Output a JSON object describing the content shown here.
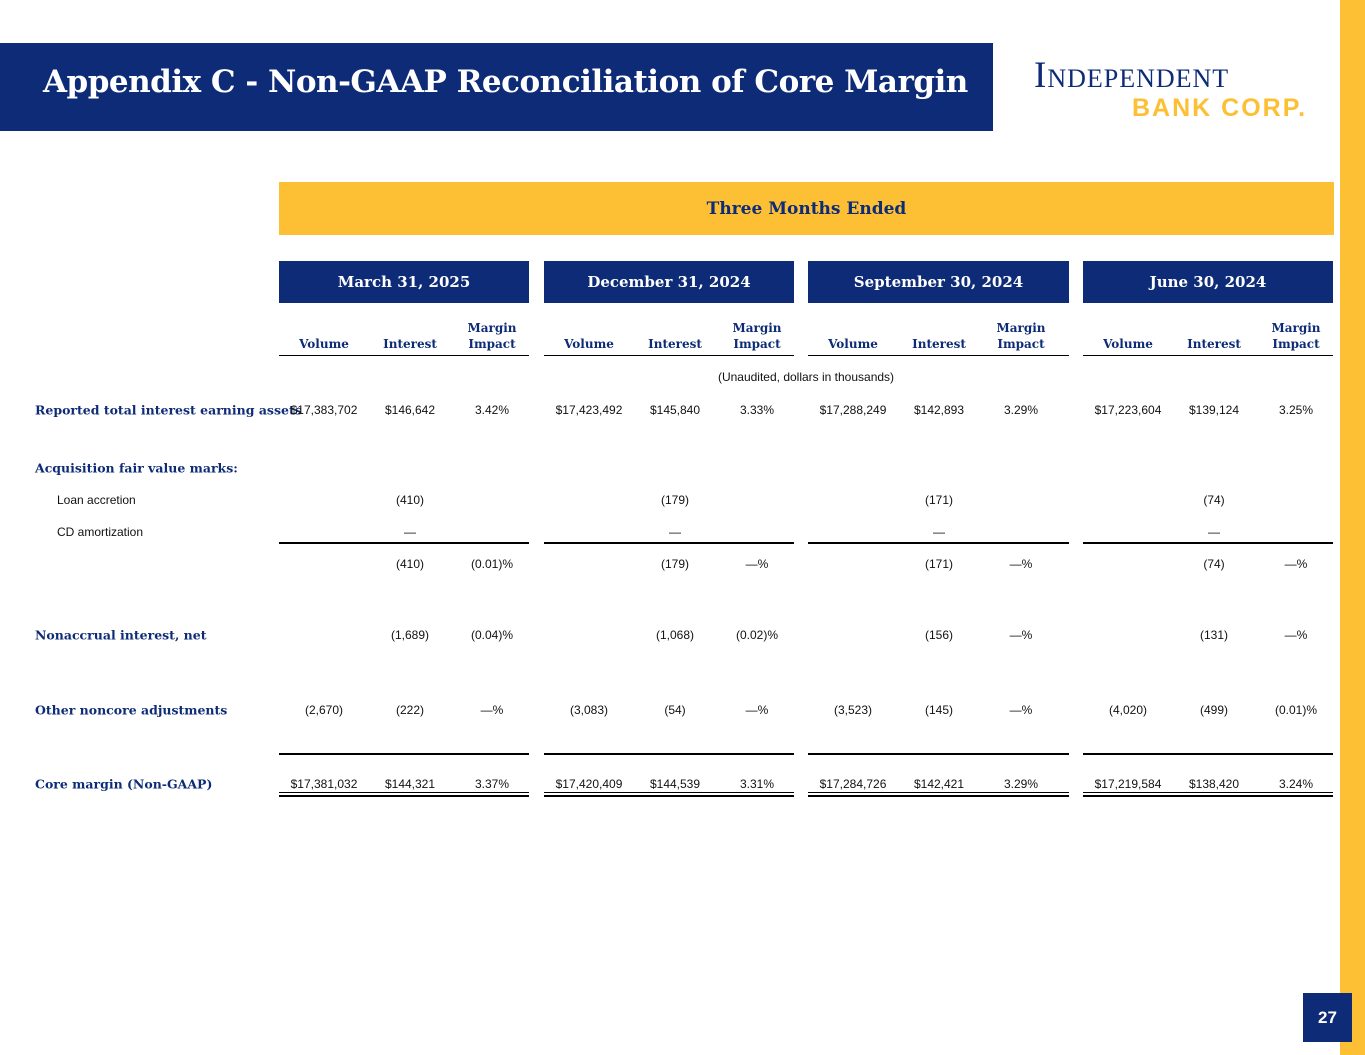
{
  "title": "Appendix C - Non-GAAP Reconciliation of Core Margin",
  "logo": {
    "line1": "Independent",
    "line2": "BANK CORP."
  },
  "page_number": "27",
  "table": {
    "super_header": "Three Months Ended",
    "note": "(Unaudited, dollars in thousands)",
    "column_headers": {
      "volume": "Volume",
      "interest": "Interest",
      "margin": "Margin Impact"
    },
    "periods": [
      "March 31, 2025",
      "December 31, 2024",
      "September 30, 2024",
      "June 30, 2024"
    ],
    "rows": [
      {
        "label": "Reported total interest earning assets",
        "bold": true,
        "values": [
          [
            "$17,383,702",
            "$146,642",
            "3.42%"
          ],
          [
            "$17,423,492",
            "$145,840",
            "3.33%"
          ],
          [
            "$17,288,249",
            "$142,893",
            "3.29%"
          ],
          [
            "$17,223,604",
            "$139,124",
            "3.25%"
          ]
        ]
      },
      {
        "label": "Acquisition fair value marks:",
        "bold": true,
        "values": []
      },
      {
        "label": "Loan accretion",
        "bold": false,
        "indent": true,
        "values": [
          [
            "",
            "(410)",
            ""
          ],
          [
            "",
            "(179)",
            ""
          ],
          [
            "",
            "(171)",
            ""
          ],
          [
            "",
            "(74)",
            ""
          ]
        ]
      },
      {
        "label": "CD amortization",
        "bold": false,
        "indent": true,
        "values": [
          [
            "",
            "—",
            ""
          ],
          [
            "",
            "—",
            ""
          ],
          [
            "",
            "—",
            ""
          ],
          [
            "",
            "—",
            ""
          ]
        ]
      },
      {
        "label": "",
        "bold": false,
        "values": [
          [
            "",
            "(410)",
            "(0.01)%"
          ],
          [
            "",
            "(179)",
            "—%"
          ],
          [
            "",
            "(171)",
            "—%"
          ],
          [
            "",
            "(74)",
            "—%"
          ]
        ]
      },
      {
        "label": "Nonaccrual interest, net",
        "bold": true,
        "values": [
          [
            "",
            "(1,689)",
            "(0.04)%"
          ],
          [
            "",
            "(1,068)",
            "(0.02)%"
          ],
          [
            "",
            "(156)",
            "—%"
          ],
          [
            "",
            "(131)",
            "—%"
          ]
        ]
      },
      {
        "label": "Other noncore adjustments",
        "bold": true,
        "values": [
          [
            "(2,670)",
            "(222)",
            "—%"
          ],
          [
            "(3,083)",
            "(54)",
            "—%"
          ],
          [
            "(3,523)",
            "(145)",
            "—%"
          ],
          [
            "(4,020)",
            "(499)",
            "(0.01)%"
          ]
        ]
      },
      {
        "label": "Core margin (Non-GAAP)",
        "bold": true,
        "values": [
          [
            "$17,381,032",
            "$144,321",
            "3.37%"
          ],
          [
            "$17,420,409",
            "$144,539",
            "3.31%"
          ],
          [
            "$17,284,726",
            "$142,421",
            "3.29%"
          ],
          [
            "$17,219,584",
            "$138,420",
            "3.24%"
          ]
        ]
      }
    ]
  },
  "colors": {
    "navy": "#0d2b76",
    "gold": "#fdbf34"
  }
}
